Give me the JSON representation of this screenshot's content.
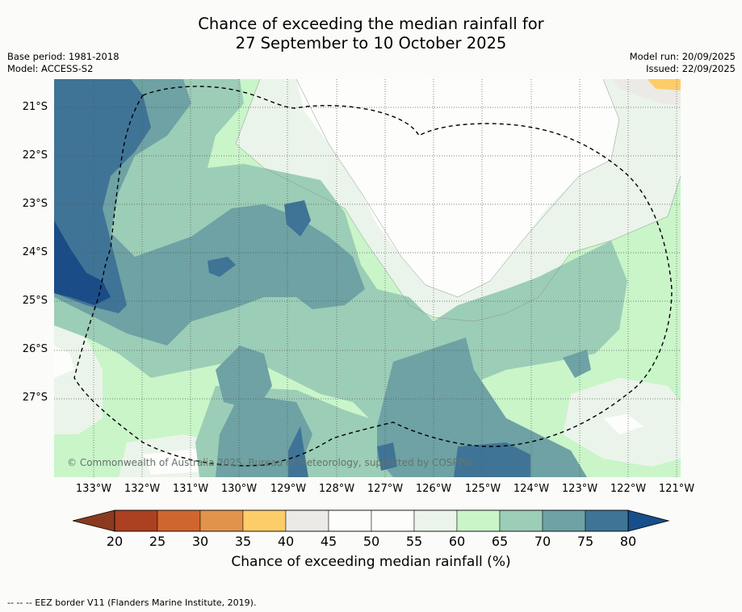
{
  "title": {
    "line1": "Chance of exceeding the median rainfall for",
    "line2": "27 September to 10 October 2025"
  },
  "meta": {
    "base_period": "Base period: 1981-2018",
    "model": "Model: ACCESS-S2",
    "model_run": "Model run: 20/09/2025",
    "issued": "Issued: 22/09/2025"
  },
  "map": {
    "copyright": "© Commonwealth of Australia 2025, Bureau of Meteorology, supported by COSPPac",
    "lat_labels": [
      "21°S",
      "22°S",
      "23°S",
      "24°S",
      "25°S",
      "26°S",
      "27°S"
    ],
    "lon_labels": [
      "133°W",
      "132°W",
      "131°W",
      "130°W",
      "129°W",
      "128°W",
      "127°W",
      "126°W",
      "125°W",
      "124°W",
      "123°W",
      "122°W",
      "121°W"
    ],
    "colors": {
      "lt65": "#c9f5c9",
      "b55_60": "#ebf4ea",
      "b45_55": "#fdfdfc",
      "b40_45": "#eceae7",
      "b35_40": "#fdcd6a",
      "b65_70": "#9ccdb7",
      "b70_75": "#6ea2a4",
      "b75_80": "#3f7496",
      "gt80": "#1a4c88"
    }
  },
  "colorbar": {
    "ticks": [
      "20",
      "25",
      "30",
      "35",
      "40",
      "45",
      "50",
      "55",
      "60",
      "65",
      "70",
      "75",
      "80"
    ],
    "colors": [
      "#ab4120",
      "#d0662f",
      "#e2934b",
      "#fdcd6a",
      "#eceae7",
      "#fdfdfc",
      "#fdfdfc",
      "#ebf4ea",
      "#c9f5c9",
      "#9ccdb7",
      "#6ea2a4",
      "#3f7496"
    ],
    "low_color": "#8a3a1f",
    "high_color": "#164f8a",
    "label": "Chance of exceeding median rainfall (%)"
  },
  "footnote": "-- -- -- EEZ border V11 (Flanders Marine Institute, 2019)."
}
